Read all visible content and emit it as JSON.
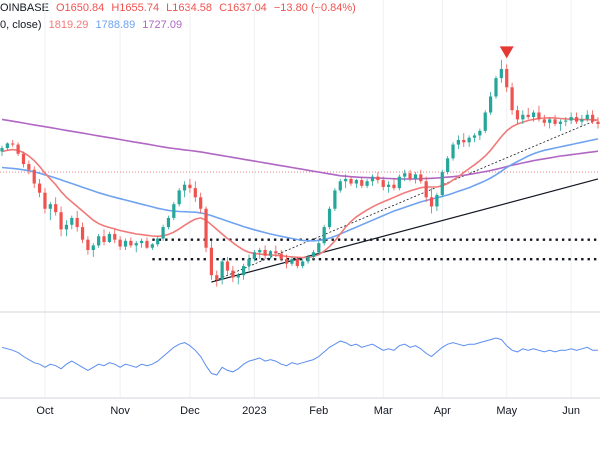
{
  "header": {
    "symbol_fragment": "OINBASE",
    "open": "O1650.84",
    "high": "H1655.74",
    "low": "L1634.58",
    "close": "C1637.04",
    "change": "−13.80 (−0.84%)",
    "ma_label": "0, close)",
    "ma_values": [
      "1819.29",
      "1788.89",
      "1727.09"
    ]
  },
  "colors": {
    "up": "#26a69a",
    "down": "#ef5350",
    "ma_fast": "#f07a7a",
    "ma_mid": "#6fa3ef",
    "ma_slow": "#b067c4",
    "rsi": "#5b8def",
    "grid": "#eef0f3",
    "axis_text": "#131722",
    "marker": "#e53935"
  },
  "chart_data": {
    "type": "candlestick",
    "x_ticks": [
      "Oct",
      "Nov",
      "Dec",
      "2023",
      "Feb",
      "Mar",
      "Apr",
      "May",
      "Jun"
    ],
    "price_ylim": [
      1050,
      2250
    ],
    "candles": [
      [
        1720,
        1745,
        1700,
        1735
      ],
      [
        1735,
        1760,
        1725,
        1755
      ],
      [
        1755,
        1770,
        1740,
        1750
      ],
      [
        1750,
        1760,
        1700,
        1710
      ],
      [
        1710,
        1720,
        1650,
        1665
      ],
      [
        1665,
        1680,
        1620,
        1640
      ],
      [
        1640,
        1655,
        1560,
        1580
      ],
      [
        1580,
        1600,
        1520,
        1540
      ],
      [
        1540,
        1560,
        1450,
        1470
      ],
      [
        1470,
        1500,
        1420,
        1490
      ],
      [
        1490,
        1520,
        1440,
        1455
      ],
      [
        1455,
        1480,
        1350,
        1380
      ],
      [
        1380,
        1420,
        1350,
        1400
      ],
      [
        1400,
        1440,
        1380,
        1430
      ],
      [
        1430,
        1460,
        1370,
        1390
      ],
      [
        1390,
        1410,
        1320,
        1335
      ],
      [
        1335,
        1350,
        1270,
        1290
      ],
      [
        1290,
        1320,
        1260,
        1310
      ],
      [
        1310,
        1360,
        1300,
        1350
      ],
      [
        1350,
        1380,
        1310,
        1325
      ],
      [
        1325,
        1370,
        1320,
        1360
      ],
      [
        1360,
        1380,
        1320,
        1335
      ],
      [
        1335,
        1350,
        1290,
        1305
      ],
      [
        1305,
        1340,
        1290,
        1330
      ],
      [
        1330,
        1345,
        1300,
        1310
      ],
      [
        1310,
        1330,
        1280,
        1320
      ],
      [
        1320,
        1340,
        1300,
        1330
      ],
      [
        1330,
        1345,
        1295,
        1300
      ],
      [
        1300,
        1320,
        1290,
        1315
      ],
      [
        1315,
        1350,
        1305,
        1340
      ],
      [
        1340,
        1400,
        1330,
        1390
      ],
      [
        1390,
        1440,
        1380,
        1430
      ],
      [
        1430,
        1500,
        1420,
        1490
      ],
      [
        1490,
        1560,
        1480,
        1550
      ],
      [
        1550,
        1590,
        1520,
        1575
      ],
      [
        1575,
        1600,
        1540,
        1560
      ],
      [
        1560,
        1590,
        1500,
        1520
      ],
      [
        1520,
        1540,
        1450,
        1470
      ],
      [
        1470,
        1480,
        1280,
        1300
      ],
      [
        1300,
        1330,
        1160,
        1180
      ],
      [
        1180,
        1200,
        1130,
        1160
      ],
      [
        1160,
        1250,
        1140,
        1240
      ],
      [
        1240,
        1260,
        1180,
        1200
      ],
      [
        1200,
        1220,
        1150,
        1170
      ],
      [
        1170,
        1190,
        1140,
        1180
      ],
      [
        1180,
        1230,
        1160,
        1220
      ],
      [
        1220,
        1270,
        1200,
        1250
      ],
      [
        1250,
        1290,
        1240,
        1280
      ],
      [
        1280,
        1300,
        1250,
        1290
      ],
      [
        1290,
        1310,
        1250,
        1265
      ],
      [
        1265,
        1290,
        1250,
        1285
      ],
      [
        1285,
        1310,
        1260,
        1275
      ],
      [
        1275,
        1290,
        1240,
        1250
      ],
      [
        1250,
        1270,
        1210,
        1230
      ],
      [
        1230,
        1260,
        1220,
        1250
      ],
      [
        1250,
        1260,
        1210,
        1220
      ],
      [
        1220,
        1250,
        1210,
        1240
      ],
      [
        1240,
        1270,
        1230,
        1260
      ],
      [
        1260,
        1290,
        1250,
        1280
      ],
      [
        1280,
        1330,
        1270,
        1320
      ],
      [
        1320,
        1400,
        1310,
        1390
      ],
      [
        1390,
        1480,
        1380,
        1470
      ],
      [
        1470,
        1560,
        1460,
        1550
      ],
      [
        1550,
        1600,
        1540,
        1590
      ],
      [
        1590,
        1620,
        1560,
        1600
      ],
      [
        1600,
        1610,
        1570,
        1580
      ],
      [
        1580,
        1600,
        1560,
        1595
      ],
      [
        1595,
        1610,
        1560,
        1570
      ],
      [
        1570,
        1600,
        1560,
        1590
      ],
      [
        1590,
        1620,
        1570,
        1610
      ],
      [
        1610,
        1630,
        1580,
        1595
      ],
      [
        1595,
        1610,
        1550,
        1565
      ],
      [
        1565,
        1590,
        1540,
        1575
      ],
      [
        1575,
        1600,
        1550,
        1560
      ],
      [
        1560,
        1620,
        1550,
        1610
      ],
      [
        1610,
        1640,
        1590,
        1625
      ],
      [
        1625,
        1640,
        1590,
        1600
      ],
      [
        1600,
        1630,
        1580,
        1620
      ],
      [
        1620,
        1640,
        1580,
        1590
      ],
      [
        1590,
        1610,
        1500,
        1520
      ],
      [
        1520,
        1560,
        1450,
        1480
      ],
      [
        1480,
        1540,
        1460,
        1530
      ],
      [
        1530,
        1640,
        1520,
        1630
      ],
      [
        1630,
        1700,
        1620,
        1690
      ],
      [
        1690,
        1760,
        1680,
        1750
      ],
      [
        1750,
        1790,
        1730,
        1770
      ],
      [
        1770,
        1800,
        1740,
        1760
      ],
      [
        1760,
        1790,
        1740,
        1780
      ],
      [
        1780,
        1800,
        1760,
        1790
      ],
      [
        1790,
        1820,
        1770,
        1810
      ],
      [
        1810,
        1900,
        1800,
        1890
      ],
      [
        1890,
        1980,
        1880,
        1960
      ],
      [
        1960,
        2050,
        1950,
        2040
      ],
      [
        2040,
        2120,
        2020,
        2080
      ],
      [
        2080,
        2100,
        1980,
        2000
      ],
      [
        2000,
        2020,
        1880,
        1900
      ],
      [
        1900,
        1920,
        1840,
        1860
      ],
      [
        1860,
        1900,
        1840,
        1880
      ],
      [
        1880,
        1910,
        1860,
        1870
      ],
      [
        1870,
        1900,
        1850,
        1890
      ],
      [
        1890,
        1920,
        1850,
        1860
      ],
      [
        1860,
        1880,
        1830,
        1845
      ],
      [
        1845,
        1870,
        1820,
        1860
      ],
      [
        1860,
        1880,
        1830,
        1840
      ],
      [
        1840,
        1860,
        1810,
        1850
      ],
      [
        1850,
        1870,
        1830,
        1855
      ],
      [
        1855,
        1890,
        1840,
        1870
      ],
      [
        1870,
        1890,
        1840,
        1850
      ],
      [
        1850,
        1880,
        1830,
        1860
      ],
      [
        1860,
        1900,
        1850,
        1880
      ],
      [
        1880,
        1900,
        1840,
        1850
      ],
      [
        1850,
        1870,
        1820,
        1840
      ]
    ],
    "ma_fast": [
      1720,
      1725,
      1728,
      1725,
      1715,
      1700,
      1680,
      1655,
      1625,
      1600,
      1575,
      1545,
      1520,
      1500,
      1480,
      1460,
      1440,
      1420,
      1405,
      1395,
      1388,
      1382,
      1375,
      1370,
      1365,
      1360,
      1357,
      1354,
      1351,
      1350,
      1352,
      1358,
      1368,
      1382,
      1398,
      1412,
      1425,
      1430,
      1420,
      1400,
      1380,
      1360,
      1340,
      1322,
      1305,
      1290,
      1280,
      1275,
      1272,
      1270,
      1268,
      1267,
      1265,
      1262,
      1260,
      1258,
      1257,
      1258,
      1262,
      1270,
      1285,
      1305,
      1330,
      1360,
      1390,
      1415,
      1435,
      1450,
      1465,
      1478,
      1490,
      1500,
      1510,
      1520,
      1530,
      1540,
      1548,
      1555,
      1562,
      1565,
      1565,
      1565,
      1570,
      1580,
      1595,
      1610,
      1628,
      1645,
      1662,
      1680,
      1700,
      1725,
      1755,
      1785,
      1810,
      1828,
      1840,
      1848,
      1855,
      1860,
      1864,
      1866,
      1867,
      1866,
      1864,
      1862,
      1861,
      1860,
      1859,
      1859,
      1858,
      1857
    ],
    "ma_mid": [
      1650,
      1648,
      1646,
      1643,
      1640,
      1636,
      1631,
      1625,
      1618,
      1611,
      1604,
      1596,
      1588,
      1580,
      1572,
      1564,
      1556,
      1548,
      1540,
      1533,
      1526,
      1520,
      1514,
      1508,
      1502,
      1496,
      1490,
      1484,
      1478,
      1472,
      1467,
      1463,
      1460,
      1458,
      1457,
      1456,
      1455,
      1452,
      1447,
      1440,
      1432,
      1424,
      1416,
      1408,
      1400,
      1392,
      1385,
      1378,
      1372,
      1366,
      1360,
      1355,
      1350,
      1345,
      1340,
      1336,
      1332,
      1330,
      1330,
      1332,
      1336,
      1342,
      1350,
      1360,
      1370,
      1380,
      1390,
      1400,
      1410,
      1420,
      1430,
      1440,
      1450,
      1460,
      1468,
      1476,
      1484,
      1492,
      1500,
      1506,
      1512,
      1518,
      1524,
      1530,
      1538,
      1546,
      1554,
      1562,
      1572,
      1582,
      1592,
      1604,
      1618,
      1634,
      1650,
      1664,
      1676,
      1688,
      1700,
      1710,
      1718,
      1725,
      1730,
      1735,
      1740,
      1745,
      1750,
      1755,
      1760,
      1765,
      1770,
      1775
    ],
    "ma_slow": [
      1860,
      1856,
      1852,
      1848,
      1844,
      1840,
      1836,
      1832,
      1828,
      1824,
      1820,
      1816,
      1812,
      1808,
      1804,
      1800,
      1796,
      1792,
      1788,
      1784,
      1780,
      1776,
      1772,
      1768,
      1764,
      1760,
      1756,
      1752,
      1748,
      1744,
      1740,
      1736,
      1733,
      1730,
      1727,
      1724,
      1721,
      1718,
      1714,
      1710,
      1706,
      1702,
      1698,
      1694,
      1690,
      1686,
      1682,
      1678,
      1674,
      1670,
      1666,
      1662,
      1658,
      1654,
      1650,
      1646,
      1642,
      1638,
      1634,
      1630,
      1626,
      1622,
      1618,
      1614,
      1612,
      1610,
      1608,
      1607,
      1606,
      1605,
      1604,
      1603,
      1602,
      1601,
      1600,
      1600,
      1600,
      1600,
      1601,
      1602,
      1603,
      1604,
      1606,
      1608,
      1610,
      1613,
      1616,
      1620,
      1624,
      1628,
      1632,
      1637,
      1642,
      1648,
      1654,
      1660,
      1665,
      1670,
      1675,
      1680,
      1684,
      1688,
      1692,
      1696,
      1700,
      1703,
      1706,
      1709,
      1712,
      1715,
      1718,
      1721
    ],
    "rsi": [
      62,
      60,
      58,
      55,
      50,
      46,
      42,
      40,
      36,
      40,
      38,
      34,
      40,
      44,
      40,
      36,
      32,
      36,
      40,
      38,
      42,
      40,
      36,
      40,
      38,
      36,
      40,
      38,
      40,
      44,
      50,
      56,
      62,
      66,
      68,
      64,
      58,
      50,
      38,
      28,
      26,
      36,
      32,
      30,
      34,
      40,
      44,
      46,
      48,
      44,
      46,
      44,
      40,
      38,
      42,
      40,
      42,
      44,
      46,
      50,
      56,
      62,
      66,
      70,
      68,
      64,
      66,
      62,
      64,
      66,
      62,
      58,
      60,
      58,
      64,
      66,
      62,
      64,
      60,
      54,
      50,
      56,
      62,
      66,
      68,
      66,
      64,
      66,
      66,
      68,
      70,
      72,
      74,
      72,
      64,
      58,
      56,
      60,
      58,
      60,
      58,
      56,
      58,
      56,
      58,
      58,
      60,
      58,
      60,
      62,
      58,
      58
    ],
    "support_levels": [
      1335,
      1250
    ],
    "trendline_solid": [
      [
        39,
        1150
      ],
      [
        111,
        1600
      ]
    ],
    "trendline_dotted": [
      [
        39,
        1150
      ],
      [
        111,
        1860
      ]
    ],
    "reference_level": 1630,
    "peak_marker_index": 94
  }
}
